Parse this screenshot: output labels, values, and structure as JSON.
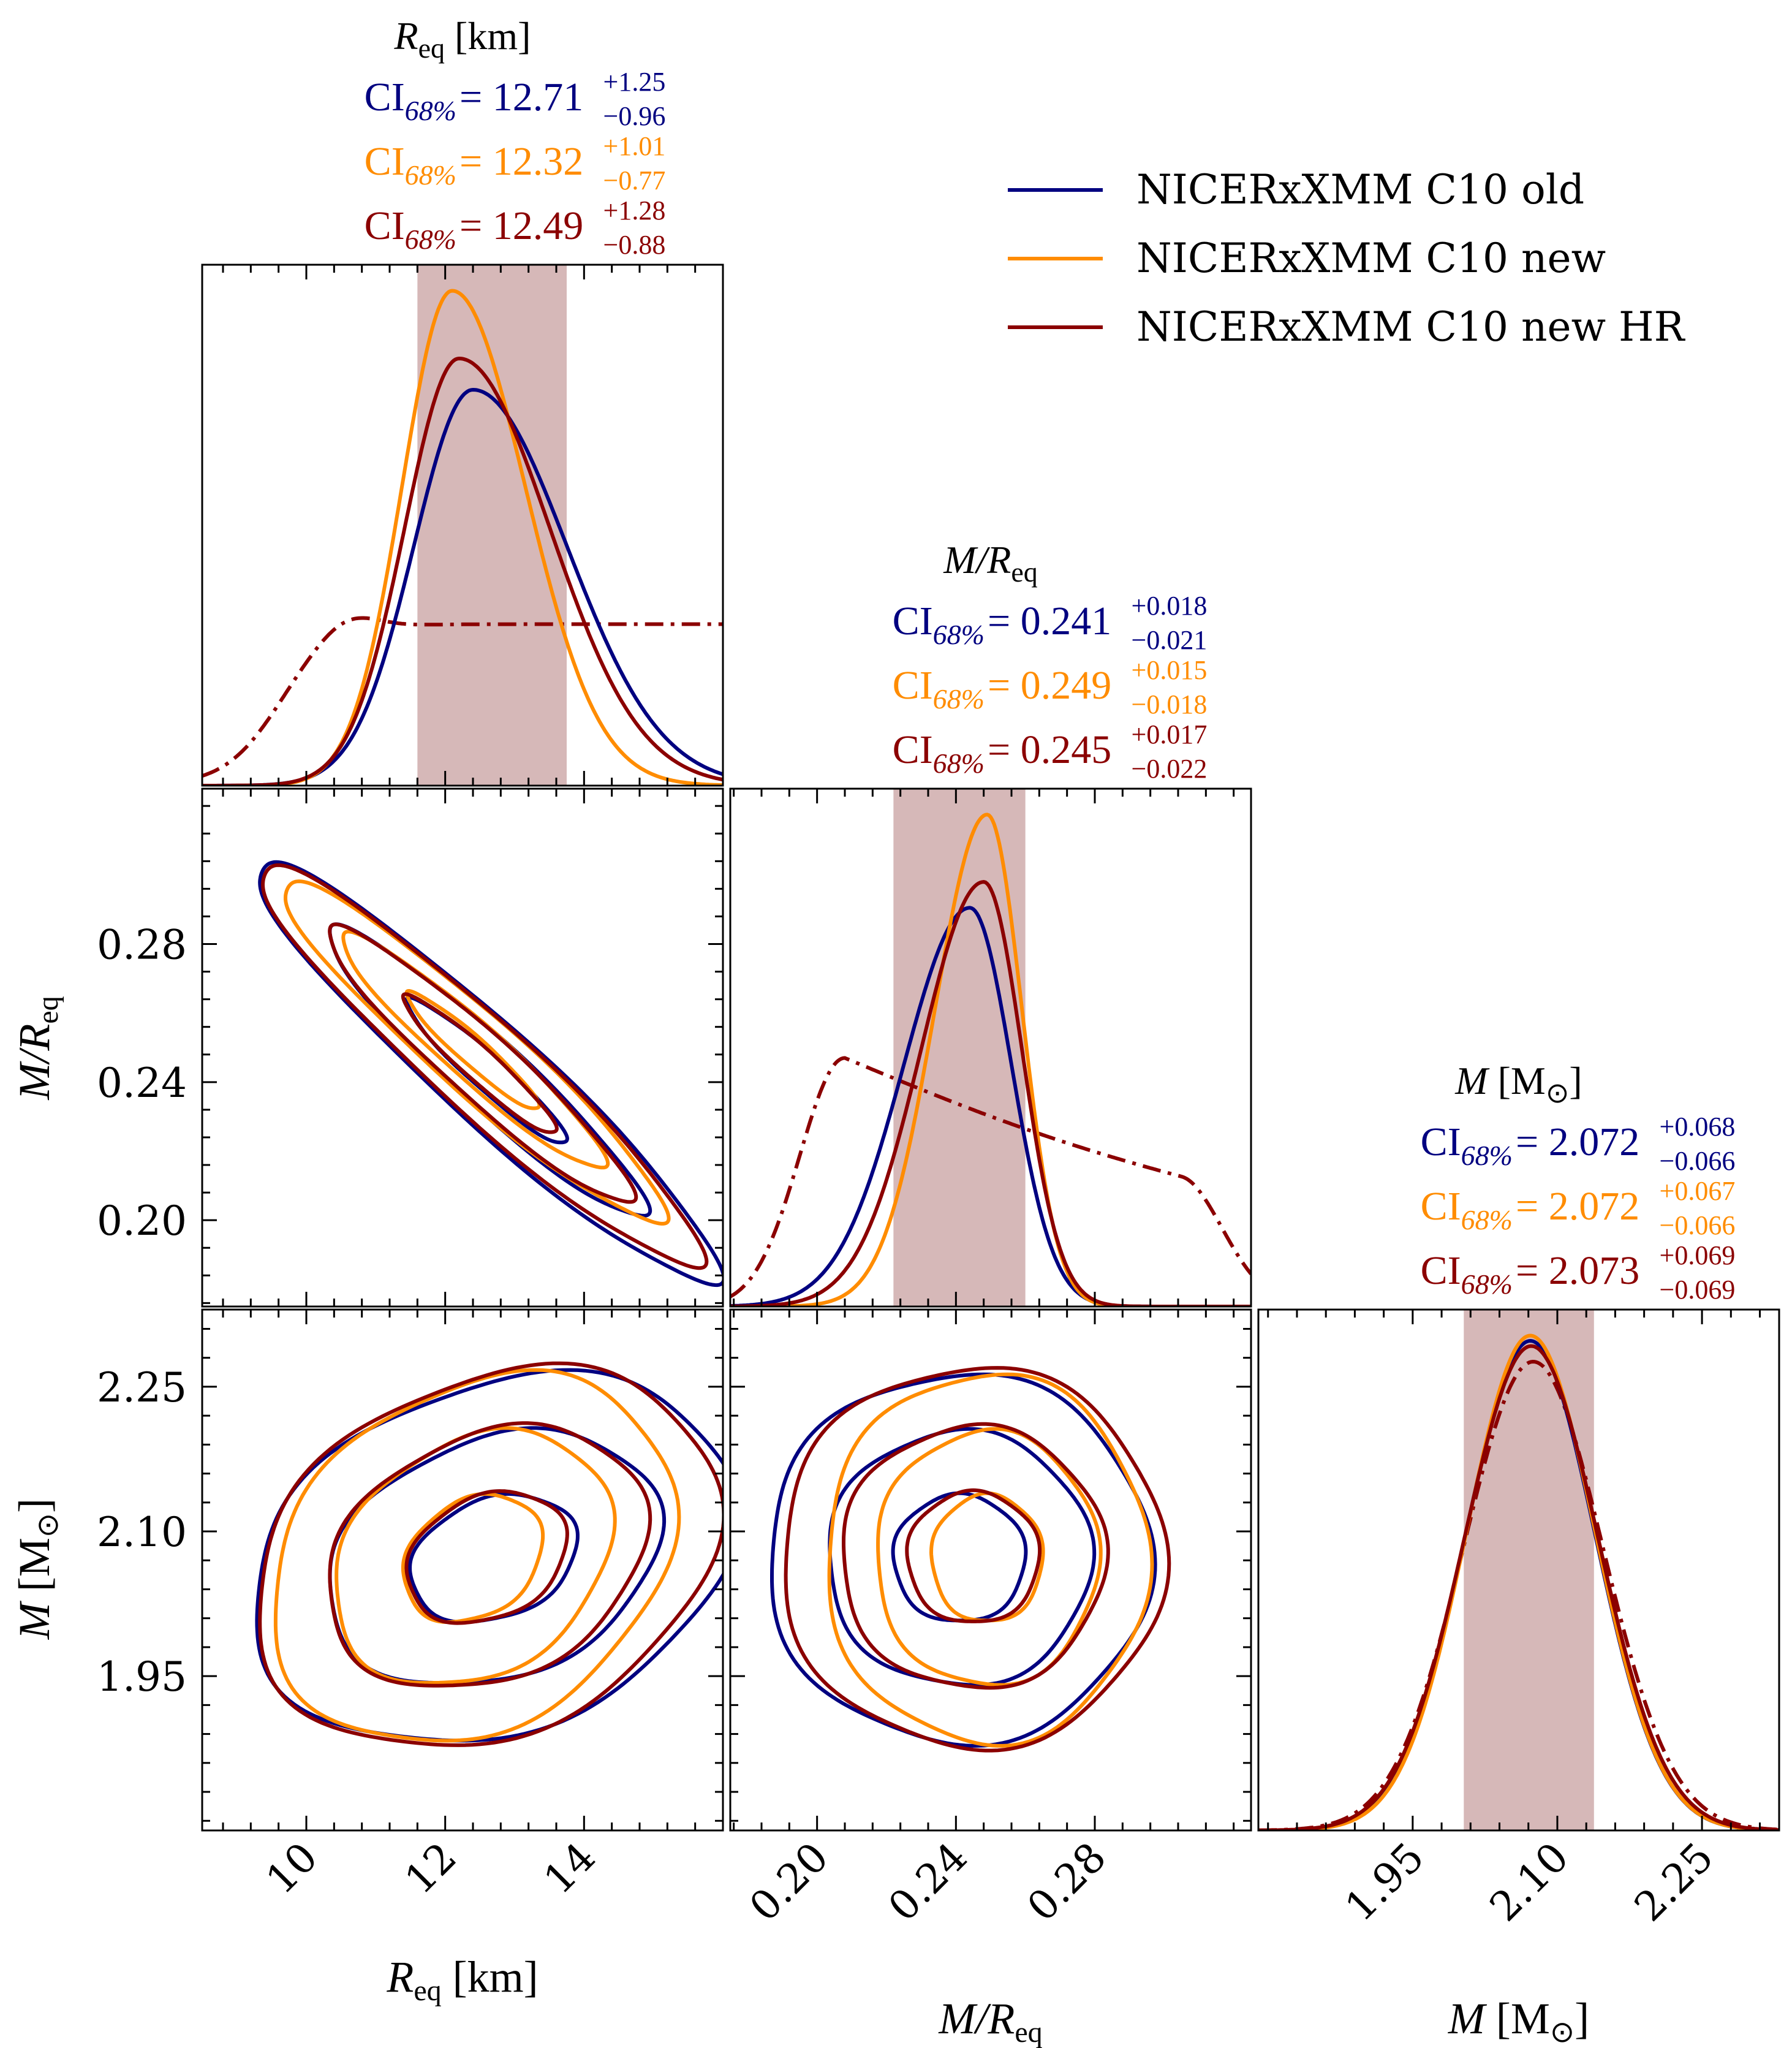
{
  "colors": {
    "old": "#000080",
    "new": "#ff8c00",
    "new_hr": "#8b0000",
    "band": "#d6b8b8"
  },
  "legend": [
    {
      "key": "old",
      "label": "NICERxXMM C10 old"
    },
    {
      "key": "new",
      "label": "NICERxXMM C10 new"
    },
    {
      "key": "new_hr",
      "label": "NICERxXMM C10 new HR"
    }
  ],
  "chart_data": {
    "type": "corner",
    "parameters": [
      {
        "id": "req",
        "title_main": "R",
        "title_sub": "eq",
        "title_unit": " [km]",
        "range": [
          8.5,
          16.0
        ],
        "ticks": [
          10,
          12,
          14
        ],
        "tick_labels": [
          "10",
          "12",
          "14"
        ],
        "axis_label": "R",
        "axis_sub": "eq",
        "axis_unit": " [km]",
        "band": [
          11.6,
          13.75
        ],
        "ci": [
          {
            "key": "old",
            "label": "CI",
            "sub": "68%",
            "value": "= 12.71",
            "plus": "+1.25",
            "minus": "−0.96"
          },
          {
            "key": "new",
            "label": "CI",
            "sub": "68%",
            "value": "= 12.32",
            "plus": "+1.01",
            "minus": "−0.77"
          },
          {
            "key": "new_hr",
            "label": "CI",
            "sub": "68%",
            "value": "= 12.49",
            "plus": "+1.28",
            "minus": "−0.88"
          }
        ],
        "prior": {
          "type": "flat_with_rise",
          "rise_center": 9.6,
          "rise_width": 0.4,
          "bump": 10.6,
          "level": 0.31
        },
        "marginals": [
          {
            "key": "old",
            "mode": 12.4,
            "sigma_left": 0.85,
            "sigma_right": 1.35,
            "peak": 0.76
          },
          {
            "key": "new",
            "mode": 12.1,
            "sigma_left": 0.72,
            "sigma_right": 1.05,
            "peak": 0.95
          },
          {
            "key": "new_hr",
            "mode": 12.2,
            "sigma_left": 0.78,
            "sigma_right": 1.3,
            "peak": 0.82
          }
        ]
      },
      {
        "id": "mr",
        "title_main": "M/R",
        "title_sub": "eq",
        "title_unit": "",
        "range": [
          0.175,
          0.325
        ],
        "ticks": [
          0.2,
          0.24,
          0.28
        ],
        "tick_labels": [
          "0.20",
          "0.24",
          "0.28"
        ],
        "axis_label": "M/R",
        "axis_sub": "eq",
        "axis_unit": "",
        "band": [
          0.222,
          0.26
        ],
        "ci": [
          {
            "key": "old",
            "label": "CI",
            "sub": "68%",
            "value": "= 0.241",
            "plus": "+0.018",
            "minus": "−0.021"
          },
          {
            "key": "new",
            "label": "CI",
            "sub": "68%",
            "value": "= 0.249",
            "plus": "+0.015",
            "minus": "−0.018"
          },
          {
            "key": "new_hr",
            "label": "CI",
            "sub": "68%",
            "value": "= 0.245",
            "plus": "+0.017",
            "minus": "−0.022"
          }
        ],
        "prior": {
          "type": "decaying",
          "peak_x": 0.208,
          "peak": 0.48
        },
        "marginals": [
          {
            "key": "old",
            "mode": 0.244,
            "sigma_left": 0.019,
            "sigma_right": 0.012,
            "peak": 0.77
          },
          {
            "key": "new",
            "mode": 0.249,
            "sigma_left": 0.015,
            "sigma_right": 0.01,
            "peak": 0.95
          },
          {
            "key": "new_hr",
            "mode": 0.248,
            "sigma_left": 0.018,
            "sigma_right": 0.011,
            "peak": 0.82
          }
        ]
      },
      {
        "id": "m",
        "title_main": "M",
        "title_sub": "",
        "title_unit": " [M",
        "title_unit_sub": "⊙",
        "title_unit_end": "]",
        "range": [
          1.79,
          2.33
        ],
        "ticks": [
          1.95,
          2.1,
          2.25
        ],
        "tick_labels": [
          "1.95",
          "2.10",
          "2.25"
        ],
        "axis_label": "M",
        "axis_sub": "",
        "axis_unit": " [M",
        "axis_unit_sub": "⊙",
        "axis_unit_end": "]",
        "band": [
          2.003,
          2.138
        ],
        "ci": [
          {
            "key": "old",
            "label": "CI",
            "sub": "68%",
            "value": "= 2.072",
            "plus": "+0.068",
            "minus": "−0.066"
          },
          {
            "key": "new",
            "label": "CI",
            "sub": "68%",
            "value": "= 2.072",
            "plus": "+0.067",
            "minus": "−0.066"
          },
          {
            "key": "new_hr",
            "label": "CI",
            "sub": "68%",
            "value": "= 2.073",
            "plus": "+0.069",
            "minus": "−0.069"
          }
        ],
        "prior": {
          "type": "gaussian",
          "mode": 2.075,
          "sigma": 0.072,
          "peak": 0.9
        },
        "marginals": [
          {
            "key": "old",
            "mode": 2.072,
            "sigma_left": 0.067,
            "sigma_right": 0.067,
            "peak": 0.94
          },
          {
            "key": "new",
            "mode": 2.072,
            "sigma_left": 0.066,
            "sigma_right": 0.067,
            "peak": 0.95
          },
          {
            "key": "new_hr",
            "mode": 2.073,
            "sigma_left": 0.069,
            "sigma_right": 0.069,
            "peak": 0.93
          }
        ]
      }
    ],
    "contours": {
      "mr_vs_req": {
        "correlation": -0.95,
        "series": [
          {
            "key": "old",
            "cx": 12.6,
            "cy": 0.243,
            "sx": 1.15,
            "sy": 0.021,
            "levels": [
              1.0,
              2.0,
              2.9
            ]
          },
          {
            "key": "new",
            "cx": 12.4,
            "cy": 0.249,
            "sx": 0.95,
            "sy": 0.017,
            "levels": [
              1.0,
              2.0,
              2.9
            ]
          },
          {
            "key": "new_hr",
            "cx": 12.5,
            "cy": 0.245,
            "sx": 1.1,
            "sy": 0.02,
            "levels": [
              1.0,
              2.0,
              2.9
            ]
          }
        ]
      },
      "m_vs_req": {
        "correlation": 0.25,
        "series": [
          {
            "key": "old",
            "cx": 12.7,
            "cy": 2.072,
            "sx": 1.2,
            "sy": 0.066,
            "levels": [
              1.0,
              2.0,
              2.9
            ]
          },
          {
            "key": "new",
            "cx": 12.4,
            "cy": 2.072,
            "sx": 1.0,
            "sy": 0.066,
            "levels": [
              1.0,
              2.0,
              2.9
            ]
          },
          {
            "key": "new_hr",
            "cx": 12.6,
            "cy": 2.073,
            "sx": 1.15,
            "sy": 0.068,
            "levels": [
              1.0,
              2.0,
              2.9
            ]
          }
        ]
      },
      "m_vs_mr": {
        "correlation": 0.0,
        "series": [
          {
            "key": "old",
            "cx": 0.241,
            "cy": 2.072,
            "sx": 0.019,
            "sy": 0.066,
            "levels": [
              1.0,
              2.0,
              2.9
            ]
          },
          {
            "key": "new",
            "cx": 0.249,
            "cy": 2.072,
            "sx": 0.016,
            "sy": 0.066,
            "levels": [
              1.0,
              2.0,
              2.9
            ]
          },
          {
            "key": "new_hr",
            "cx": 0.245,
            "cy": 2.073,
            "sx": 0.019,
            "sy": 0.068,
            "levels": [
              1.0,
              2.0,
              2.9
            ]
          }
        ]
      }
    }
  }
}
